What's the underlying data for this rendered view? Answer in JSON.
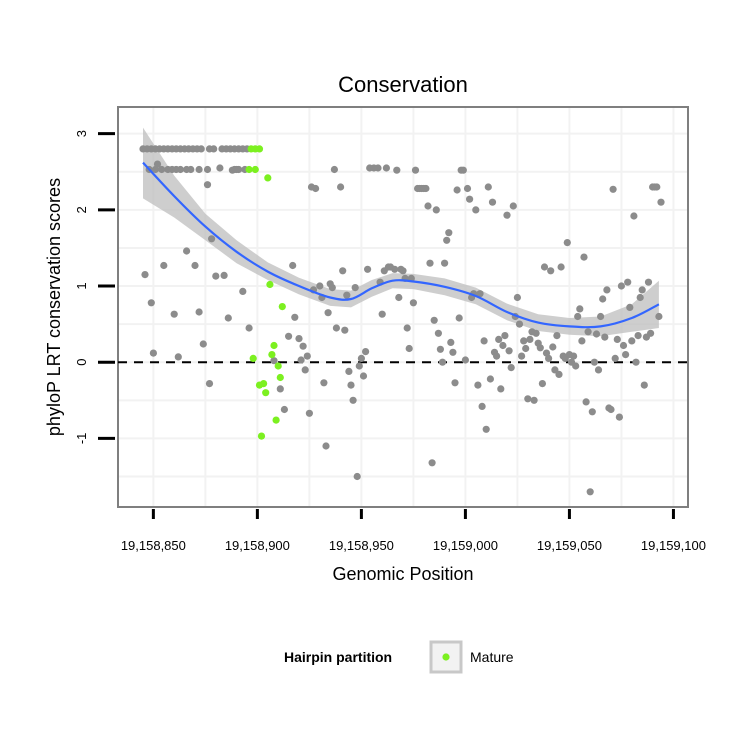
{
  "chart_data": {
    "type": "scatter",
    "title": "Conservation",
    "xlabel": "Genomic Position",
    "ylabel": "phyloP LRT conservation scores",
    "xlim": [
      19158833,
      19159107
    ],
    "ylim": [
      -1.9,
      3.35
    ],
    "x_ticks": [
      19158850,
      19158900,
      19158950,
      19159000,
      19159050,
      19159100
    ],
    "x_tick_labels": [
      "19,158,850",
      "19,158,900",
      "19,158,950",
      "19,159,000",
      "19,159,050",
      "19,159,100"
    ],
    "y_ticks": [
      -1,
      0,
      1,
      2,
      3
    ],
    "y_tick_labels": [
      "-1",
      "0",
      "1",
      "2",
      "3"
    ],
    "reference_line": {
      "y": 0,
      "style": "dashed"
    },
    "legend": {
      "title": "Hairpin partition",
      "entries": [
        {
          "label": "Mature",
          "color": "#7cf020"
        }
      ],
      "position": "bottom"
    },
    "colors": {
      "other": "#8c8c8c",
      "mature": "#7cf020",
      "smooth": "#3366ff",
      "ribbon": "#bdbdbd",
      "grid": "#f2f2f2",
      "border": "#7f7f7f"
    },
    "series": [
      {
        "name": "Other",
        "points": [
          [
            19158845,
            2.8
          ],
          [
            19158847,
            2.8
          ],
          [
            19158849,
            2.8
          ],
          [
            19158851,
            2.8
          ],
          [
            19158853,
            2.8
          ],
          [
            19158855,
            2.8
          ],
          [
            19158857,
            2.8
          ],
          [
            19158859,
            2.8
          ],
          [
            19158861,
            2.8
          ],
          [
            19158863,
            2.8
          ],
          [
            19158865,
            2.8
          ],
          [
            19158867,
            2.8
          ],
          [
            19158869,
            2.8
          ],
          [
            19158871,
            2.8
          ],
          [
            19158873,
            2.8
          ],
          [
            19158877,
            2.8
          ],
          [
            19158879,
            2.8
          ],
          [
            19158883,
            2.8
          ],
          [
            19158885,
            2.8
          ],
          [
            19158887,
            2.8
          ],
          [
            19158889,
            2.8
          ],
          [
            19158891,
            2.8
          ],
          [
            19158893,
            2.8
          ],
          [
            19158895,
            2.8
          ],
          [
            19158848,
            2.53
          ],
          [
            19158851,
            2.53
          ],
          [
            19158854,
            2.53
          ],
          [
            19158857,
            2.53
          ],
          [
            19158859,
            2.53
          ],
          [
            19158861,
            2.53
          ],
          [
            19158863,
            2.53
          ],
          [
            19158866,
            2.53
          ],
          [
            19158868,
            2.53
          ],
          [
            19158872,
            2.53
          ],
          [
            19158876,
            2.53
          ],
          [
            19158889,
            2.53
          ],
          [
            19158891,
            2.53
          ],
          [
            19158894,
            2.53
          ],
          [
            19158846,
            1.15
          ],
          [
            19158849,
            0.78
          ],
          [
            19158850,
            0.12
          ],
          [
            19158852,
            2.6
          ],
          [
            19158855,
            1.27
          ],
          [
            19158860,
            0.63
          ],
          [
            19158862,
            0.07
          ],
          [
            19158866,
            1.46
          ],
          [
            19158870,
            1.27
          ],
          [
            19158872,
            0.66
          ],
          [
            19158874,
            0.24
          ],
          [
            19158876,
            2.33
          ],
          [
            19158877,
            -0.28
          ],
          [
            19158878,
            1.62
          ],
          [
            19158880,
            1.13
          ],
          [
            19158882,
            2.55
          ],
          [
            19158884,
            1.14
          ],
          [
            19158886,
            0.58
          ],
          [
            19158888,
            2.52
          ],
          [
            19158890,
            2.53
          ],
          [
            19158893,
            0.93
          ],
          [
            19158896,
            0.45
          ],
          [
            19158908,
            0.02
          ],
          [
            19158911,
            -0.35
          ],
          [
            19158913,
            -0.62
          ],
          [
            19158915,
            0.34
          ],
          [
            19158917,
            1.27
          ],
          [
            19158918,
            0.59
          ],
          [
            19158920,
            0.31
          ],
          [
            19158921,
            0.03
          ],
          [
            19158922,
            0.21
          ],
          [
            19158923,
            -0.1
          ],
          [
            19158924,
            0.08
          ],
          [
            19158925,
            -0.67
          ],
          [
            19158926,
            2.3
          ],
          [
            19158927,
            0.95
          ],
          [
            19158928,
            2.28
          ],
          [
            19158930,
            1.0
          ],
          [
            19158931,
            0.85
          ],
          [
            19158932,
            -0.27
          ],
          [
            19158933,
            -1.1
          ],
          [
            19158934,
            0.65
          ],
          [
            19158935,
            1.03
          ],
          [
            19158936,
            0.98
          ],
          [
            19158937,
            2.53
          ],
          [
            19158938,
            0.45
          ],
          [
            19158940,
            2.3
          ],
          [
            19158941,
            1.2
          ],
          [
            19158942,
            0.42
          ],
          [
            19158943,
            0.88
          ],
          [
            19158944,
            -0.12
          ],
          [
            19158945,
            -0.3
          ],
          [
            19158946,
            -0.5
          ],
          [
            19158947,
            0.98
          ],
          [
            19158948,
            -1.5
          ],
          [
            19158949,
            -0.05
          ],
          [
            19158950,
            0.05
          ],
          [
            19158951,
            -0.18
          ],
          [
            19158952,
            0.14
          ],
          [
            19158953,
            1.22
          ],
          [
            19158954,
            2.55
          ],
          [
            19158956,
            2.55
          ],
          [
            19158958,
            2.55
          ],
          [
            19158959,
            1.05
          ],
          [
            19158960,
            0.63
          ],
          [
            19158961,
            1.2
          ],
          [
            19158962,
            2.55
          ],
          [
            19158963,
            1.25
          ],
          [
            19158964,
            1.25
          ],
          [
            19158966,
            1.22
          ],
          [
            19158967,
            2.52
          ],
          [
            19158968,
            0.85
          ],
          [
            19158969,
            1.22
          ],
          [
            19158970,
            1.2
          ],
          [
            19158971,
            1.1
          ],
          [
            19158972,
            0.45
          ],
          [
            19158973,
            0.18
          ],
          [
            19158974,
            1.1
          ],
          [
            19158975,
            0.78
          ],
          [
            19158976,
            2.52
          ],
          [
            19158977,
            2.28
          ],
          [
            19158978,
            2.28
          ],
          [
            19158979,
            2.28
          ],
          [
            19158980,
            2.28
          ],
          [
            19158981,
            2.28
          ],
          [
            19158982,
            2.05
          ],
          [
            19158983,
            1.3
          ],
          [
            19158984,
            -1.32
          ],
          [
            19158985,
            0.55
          ],
          [
            19158986,
            2.0
          ],
          [
            19158987,
            0.38
          ],
          [
            19158988,
            0.17
          ],
          [
            19158989,
            0.0
          ],
          [
            19158990,
            1.3
          ],
          [
            19158991,
            1.6
          ],
          [
            19158992,
            1.7
          ],
          [
            19158993,
            0.26
          ],
          [
            19158994,
            0.13
          ],
          [
            19158995,
            -0.27
          ],
          [
            19158996,
            2.26
          ],
          [
            19158997,
            0.58
          ],
          [
            19158998,
            2.52
          ],
          [
            19158999,
            2.52
          ],
          [
            19159000,
            0.03
          ],
          [
            19159001,
            2.28
          ],
          [
            19159002,
            2.14
          ],
          [
            19159003,
            0.85
          ],
          [
            19159004,
            0.9
          ],
          [
            19159005,
            2.0
          ],
          [
            19159006,
            -0.3
          ],
          [
            19159007,
            0.9
          ],
          [
            19159008,
            -0.58
          ],
          [
            19159009,
            0.28
          ],
          [
            19159010,
            -0.88
          ],
          [
            19159011,
            2.3
          ],
          [
            19159012,
            -0.22
          ],
          [
            19159013,
            2.1
          ],
          [
            19159014,
            0.13
          ],
          [
            19159015,
            0.08
          ],
          [
            19159016,
            0.3
          ],
          [
            19159017,
            -0.35
          ],
          [
            19159018,
            0.22
          ],
          [
            19159019,
            0.35
          ],
          [
            19159020,
            1.93
          ],
          [
            19159021,
            0.15
          ],
          [
            19159022,
            -0.07
          ],
          [
            19159023,
            2.05
          ],
          [
            19159024,
            0.6
          ],
          [
            19159025,
            0.85
          ],
          [
            19159026,
            0.5
          ],
          [
            19159027,
            0.08
          ],
          [
            19159028,
            0.28
          ],
          [
            19159029,
            0.18
          ],
          [
            19159030,
            -0.48
          ],
          [
            19159031,
            0.3
          ],
          [
            19159032,
            0.4
          ],
          [
            19159033,
            -0.5
          ],
          [
            19159034,
            0.38
          ],
          [
            19159035,
            0.25
          ],
          [
            19159036,
            0.19
          ],
          [
            19159037,
            -0.28
          ],
          [
            19159038,
            1.25
          ],
          [
            19159039,
            0.12
          ],
          [
            19159040,
            0.05
          ],
          [
            19159041,
            1.2
          ],
          [
            19159042,
            0.2
          ],
          [
            19159043,
            -0.1
          ],
          [
            19159044,
            0.35
          ],
          [
            19159045,
            -0.16
          ],
          [
            19159046,
            1.25
          ],
          [
            19159047,
            0.08
          ],
          [
            19159048,
            0.05
          ],
          [
            19159049,
            1.57
          ],
          [
            19159050,
            0.1
          ],
          [
            19159051,
            0.0
          ],
          [
            19159052,
            0.08
          ],
          [
            19159053,
            -0.05
          ],
          [
            19159054,
            0.6
          ],
          [
            19159055,
            0.7
          ],
          [
            19159056,
            0.28
          ],
          [
            19159057,
            1.38
          ],
          [
            19159058,
            -0.52
          ],
          [
            19159059,
            0.4
          ],
          [
            19159060,
            -1.7
          ],
          [
            19159061,
            -0.65
          ],
          [
            19159062,
            0.0
          ],
          [
            19159063,
            0.37
          ],
          [
            19159064,
            -0.1
          ],
          [
            19159065,
            0.6
          ],
          [
            19159066,
            0.83
          ],
          [
            19159067,
            0.33
          ],
          [
            19159068,
            0.95
          ],
          [
            19159069,
            -0.6
          ],
          [
            19159070,
            -0.62
          ],
          [
            19159071,
            2.27
          ],
          [
            19159072,
            0.05
          ],
          [
            19159073,
            0.3
          ],
          [
            19159074,
            -0.72
          ],
          [
            19159075,
            1.0
          ],
          [
            19159076,
            0.22
          ],
          [
            19159077,
            0.1
          ],
          [
            19159078,
            1.05
          ],
          [
            19159079,
            0.72
          ],
          [
            19159080,
            0.28
          ],
          [
            19159081,
            1.92
          ],
          [
            19159082,
            0.0
          ],
          [
            19159083,
            0.35
          ],
          [
            19159084,
            0.85
          ],
          [
            19159085,
            0.95
          ],
          [
            19159086,
            -0.3
          ],
          [
            19159087,
            0.33
          ],
          [
            19159088,
            1.05
          ],
          [
            19159089,
            0.38
          ],
          [
            19159090,
            2.3
          ],
          [
            19159091,
            2.3
          ],
          [
            19159092,
            2.3
          ],
          [
            19159093,
            0.6
          ],
          [
            19159094,
            2.1
          ]
        ]
      },
      {
        "name": "Mature",
        "points": [
          [
            19158897,
            2.8
          ],
          [
            19158899,
            2.8
          ],
          [
            19158901,
            2.8
          ],
          [
            19158896,
            2.53
          ],
          [
            19158899,
            2.53
          ],
          [
            19158905,
            2.42
          ],
          [
            19158898,
            0.05
          ],
          [
            19158901,
            -0.3
          ],
          [
            19158903,
            -0.28
          ],
          [
            19158904,
            -0.4
          ],
          [
            19158902,
            -0.97
          ],
          [
            19158906,
            1.02
          ],
          [
            19158907,
            0.1
          ],
          [
            19158908,
            0.22
          ],
          [
            19158909,
            -0.76
          ],
          [
            19158910,
            -0.05
          ],
          [
            19158911,
            -0.2
          ],
          [
            19158912,
            0.73
          ]
        ]
      }
    ],
    "smooth": {
      "x": [
        19158845,
        19158860,
        19158875,
        19158890,
        19158905,
        19158920,
        19158935,
        19158945,
        19158955,
        19158965,
        19158975,
        19158990,
        19159005,
        19159020,
        19159035,
        19159050,
        19159065,
        19159080,
        19159093
      ],
      "y": [
        2.62,
        2.18,
        1.78,
        1.45,
        1.19,
        1.0,
        0.85,
        0.83,
        0.97,
        1.07,
        1.06,
        0.99,
        0.87,
        0.66,
        0.52,
        0.47,
        0.47,
        0.58,
        0.76
      ],
      "lower": [
        2.15,
        1.9,
        1.6,
        1.3,
        1.08,
        0.89,
        0.74,
        0.72,
        0.86,
        0.97,
        0.96,
        0.88,
        0.76,
        0.55,
        0.41,
        0.36,
        0.34,
        0.4,
        0.45
      ],
      "upper": [
        3.08,
        2.45,
        1.95,
        1.6,
        1.31,
        1.11,
        0.96,
        0.94,
        1.08,
        1.17,
        1.16,
        1.1,
        0.98,
        0.77,
        0.63,
        0.58,
        0.6,
        0.76,
        1.07
      ]
    }
  }
}
